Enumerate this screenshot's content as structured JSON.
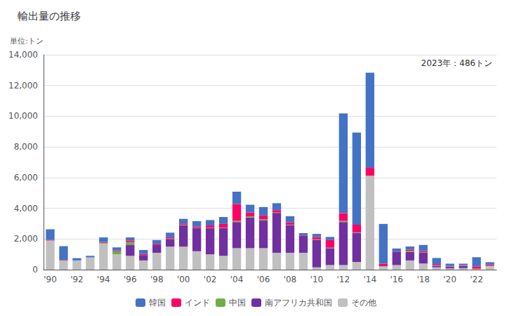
{
  "chart_data": {
    "type": "bar",
    "title": "輸出量の推移",
    "ylabel": "単位:トン",
    "annotation": "2023年：486トン",
    "stacked": true,
    "grid": true,
    "legend": "bottom",
    "categories": [
      "'90",
      null,
      "'92",
      null,
      "'94",
      null,
      "'96",
      null,
      "'98",
      null,
      "'00",
      null,
      "'02",
      null,
      "'04",
      null,
      "'06",
      null,
      "'08",
      null,
      "'10",
      null,
      "'12",
      null,
      "'14",
      null,
      "'16",
      null,
      "'18",
      null,
      "'20",
      null,
      "'22",
      null
    ],
    "series": [
      {
        "name": "韓国",
        "color": "#4472C4",
        "values": [
          700,
          900,
          150,
          100,
          300,
          200,
          200,
          250,
          250,
          300,
          300,
          350,
          350,
          450,
          800,
          500,
          550,
          450,
          400,
          150,
          200,
          200,
          6500,
          6000,
          6200,
          2600,
          200,
          200,
          400,
          400,
          150,
          80,
          600,
          150
        ]
      },
      {
        "name": "インド",
        "color": "#FF0066",
        "values": [
          30,
          30,
          0,
          0,
          50,
          50,
          100,
          80,
          80,
          80,
          80,
          80,
          150,
          250,
          1100,
          250,
          250,
          150,
          150,
          30,
          150,
          500,
          500,
          500,
          500,
          150,
          30,
          80,
          80,
          80,
          30,
          30,
          150,
          80
        ]
      },
      {
        "name": "中国",
        "color": "#70AD47",
        "values": [
          0,
          0,
          0,
          0,
          50,
          200,
          200,
          0,
          0,
          30,
          30,
          30,
          30,
          30,
          80,
          80,
          80,
          30,
          30,
          0,
          30,
          30,
          80,
          30,
          30,
          30,
          0,
          80,
          30,
          30,
          30,
          30,
          30,
          30
        ]
      },
      {
        "name": "南アフリカ共和国",
        "color": "#7030A0",
        "values": [
          0,
          0,
          0,
          0,
          0,
          0,
          700,
          350,
          500,
          500,
          1400,
          1500,
          1700,
          1800,
          1700,
          2000,
          1800,
          2600,
          1800,
          1100,
          1800,
          1100,
          2800,
          1900,
          0,
          0,
          850,
          550,
          700,
          100,
          100,
          150,
          0,
          0
        ]
      },
      {
        "name": "その他",
        "color": "#C0C0C0",
        "values": [
          1900,
          600,
          600,
          800,
          1700,
          1000,
          900,
          600,
          1100,
          1500,
          1500,
          1200,
          1000,
          900,
          1400,
          1400,
          1400,
          1100,
          1100,
          1100,
          150,
          300,
          300,
          500,
          6100,
          200,
          300,
          600,
          400,
          150,
          80,
          100,
          30,
          226
        ]
      }
    ],
    "ylim": [
      0,
      14000
    ],
    "yticks": [
      0,
      {
        "value": 2000,
        "label": "2,000"
      },
      {
        "value": 4000,
        "label": "4,000"
      },
      {
        "value": 6000,
        "label": "6,000"
      },
      {
        "value": 8000,
        "label": "8,000"
      },
      {
        "value": 10000,
        "label": "10,000"
      },
      {
        "value": 12000,
        "label": "12,000"
      },
      {
        "value": 14000,
        "label": "14,000"
      }
    ]
  }
}
